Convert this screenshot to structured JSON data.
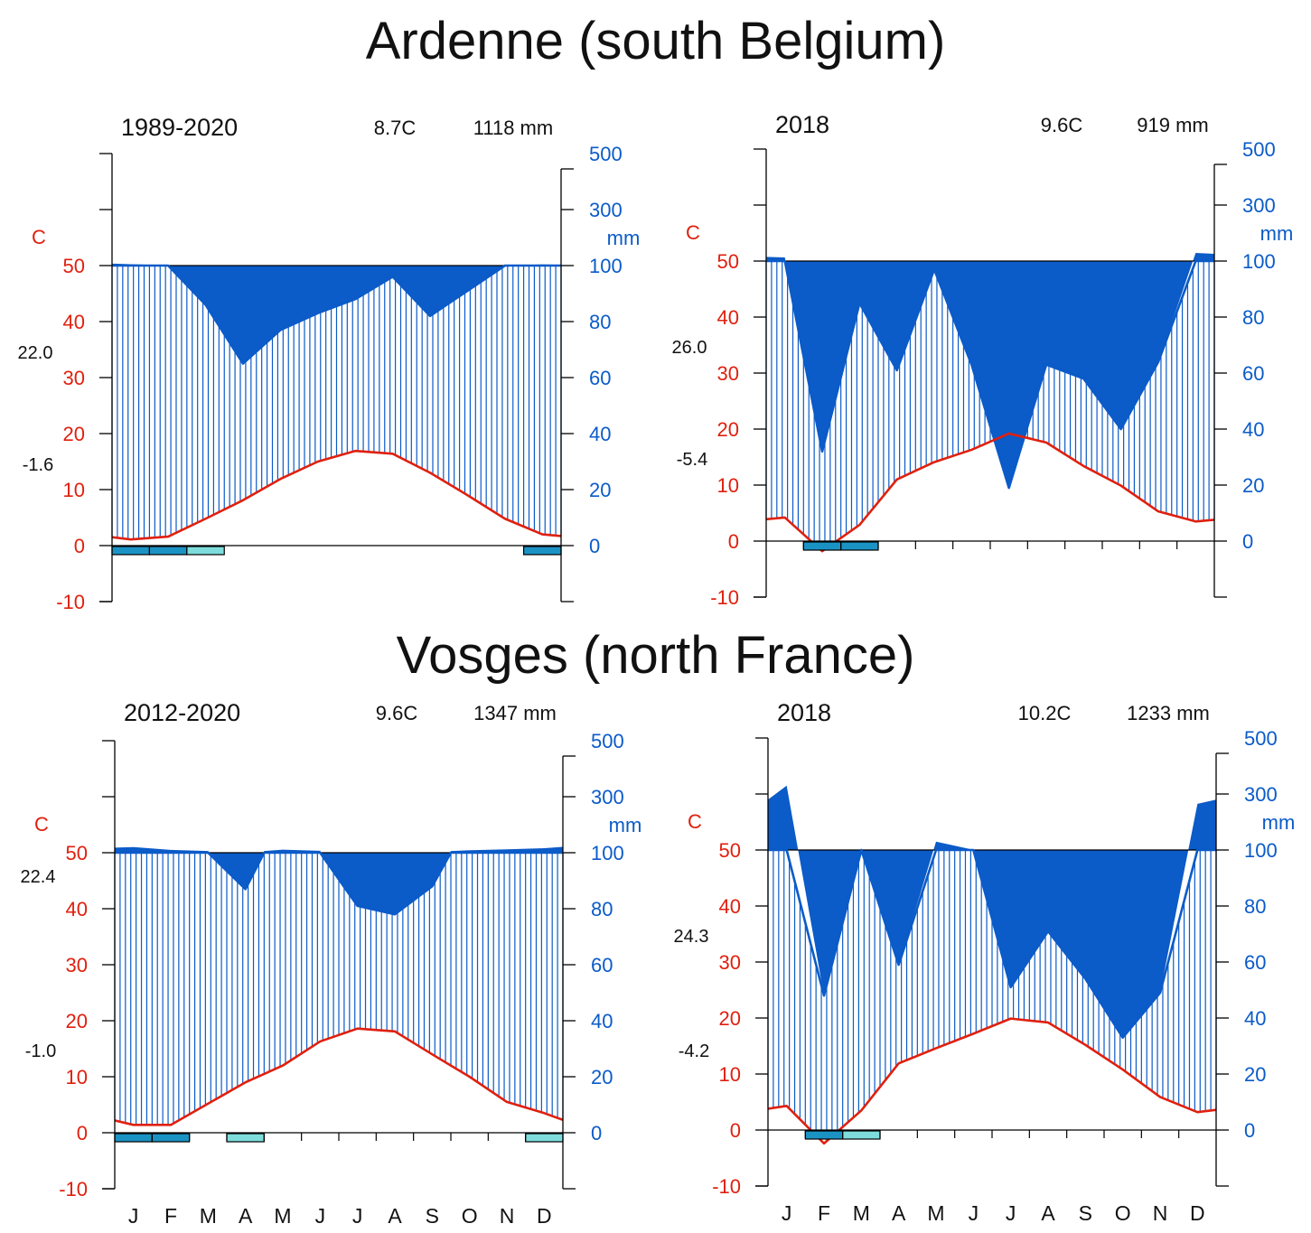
{
  "titles": {
    "top": "Ardenne (south Belgium)",
    "bottom": "Vosges (north France)"
  },
  "colors": {
    "temperature": "#e0200e",
    "precipitation": "#0b5bc8",
    "frost_certain": "#1a93c4",
    "frost_probable": "#7edcdc",
    "axis": "#000000"
  },
  "months": [
    "J",
    "F",
    "M",
    "A",
    "M",
    "J",
    "J",
    "A",
    "S",
    "O",
    "N",
    "D"
  ],
  "chart_data": [
    {
      "type": "climate-diagram",
      "period": "1989-2020",
      "mean_temp": "8.7C",
      "annual_precip": "1118 mm",
      "max_temp_label": "22.0",
      "min_temp_label": "-1.6",
      "temp_unit": "C",
      "precip_unit": "mm",
      "temp_ticks": [
        "-10",
        "0",
        "10",
        "20",
        "30",
        "40",
        "50"
      ],
      "precip_ticks": [
        "0",
        "20",
        "40",
        "60",
        "80",
        "100",
        "300",
        "500"
      ],
      "x": [
        0,
        0.5,
        1.5,
        2.5,
        3.5,
        4.5,
        5.5,
        6.5,
        7.5,
        8.5,
        9.5,
        10.5,
        11.5,
        12
      ],
      "temperature": [
        1.5,
        1.1,
        1.6,
        4.8,
        8.1,
        11.9,
        15.0,
        16.9,
        16.4,
        13.0,
        9.0,
        4.8,
        2.0,
        1.7
      ],
      "precipitation": [
        107,
        105,
        101,
        86,
        65,
        77,
        83,
        88,
        96,
        82,
        91,
        100,
        104,
        103
      ],
      "frost_bars": [
        {
          "month": 1,
          "kind": "certain"
        },
        {
          "month": 2,
          "kind": "certain"
        },
        {
          "month": 3,
          "kind": "probable"
        },
        {
          "month": 12,
          "kind": "certain"
        }
      ]
    },
    {
      "type": "climate-diagram",
      "period": "2018",
      "mean_temp": "9.6C",
      "annual_precip": "919 mm",
      "max_temp_label": "26.0",
      "min_temp_label": "-5.4",
      "temp_unit": "C",
      "precip_unit": "mm",
      "temp_ticks": [
        "-10",
        "0",
        "10",
        "20",
        "30",
        "40",
        "50"
      ],
      "precip_ticks": [
        "0",
        "20",
        "40",
        "60",
        "80",
        "100",
        "300",
        "500"
      ],
      "x": [
        0,
        0.5,
        1.5,
        2.5,
        3.5,
        4.5,
        5.5,
        6.5,
        7.5,
        8.5,
        9.5,
        10.5,
        11.5,
        12
      ],
      "temperature": [
        3.9,
        4.2,
        -1.8,
        2.9,
        11.0,
        14.1,
        16.3,
        19.2,
        17.6,
        13.4,
        9.9,
        5.3,
        3.5,
        3.8
      ],
      "precipitation": [
        115,
        113,
        32,
        85,
        61,
        97,
        63,
        19,
        63,
        58,
        40,
        64,
        129,
        126
      ],
      "frost_bars": [
        {
          "month": 2,
          "kind": "certain"
        },
        {
          "month": 3,
          "kind": "certain"
        }
      ]
    },
    {
      "type": "climate-diagram",
      "period": "2012-2020",
      "mean_temp": "9.6C",
      "annual_precip": "1347 mm",
      "max_temp_label": "22.4",
      "min_temp_label": "-1.0",
      "temp_unit": "C",
      "precip_unit": "mm",
      "temp_ticks": [
        "-10",
        "0",
        "10",
        "20",
        "30",
        "40",
        "50"
      ],
      "precip_ticks": [
        "0",
        "20",
        "40",
        "60",
        "80",
        "100",
        "300",
        "500"
      ],
      "x": [
        0,
        0.5,
        1.5,
        2.5,
        3.5,
        4.0,
        4.5,
        5.5,
        6.5,
        7.5,
        8.5,
        9.0,
        9.5,
        10.5,
        11.5,
        12
      ],
      "temperature": [
        2.2,
        1.4,
        1.4,
        5.2,
        9.0,
        10.5,
        12.0,
        16.3,
        18.6,
        18.1,
        14.0,
        12.0,
        10.0,
        5.5,
        3.5,
        2.3
      ],
      "precipitation": [
        118,
        120,
        110,
        106,
        87,
        106,
        111,
        107,
        81,
        78,
        88,
        106,
        109,
        112,
        116,
        121
      ],
      "frost_bars": [
        {
          "month": 1,
          "kind": "certain"
        },
        {
          "month": 2,
          "kind": "certain"
        },
        {
          "month": 4,
          "kind": "probable"
        },
        {
          "month": 12,
          "kind": "probable"
        }
      ]
    },
    {
      "type": "climate-diagram",
      "period": "2018",
      "mean_temp": "10.2C",
      "annual_precip": "1233 mm",
      "max_temp_label": "24.3",
      "min_temp_label": "-4.2",
      "temp_unit": "C",
      "precip_unit": "mm",
      "temp_ticks": [
        "-10",
        "0",
        "10",
        "20",
        "30",
        "40",
        "50"
      ],
      "precip_ticks": [
        "0",
        "20",
        "40",
        "60",
        "80",
        "100",
        "300",
        "500"
      ],
      "x": [
        0,
        0.5,
        1.5,
        2.5,
        3.5,
        4.5,
        5.5,
        6.5,
        7.5,
        8.5,
        9.5,
        10.5,
        11.5,
        12
      ],
      "temperature": [
        3.8,
        4.3,
        -2.4,
        3.5,
        11.9,
        14.6,
        17.2,
        19.9,
        19.2,
        15.2,
        10.8,
        5.9,
        3.2,
        3.6
      ],
      "precipitation": [
        280,
        330,
        48,
        104,
        59,
        130,
        101,
        51,
        71,
        54,
        33,
        49,
        265,
        280
      ],
      "frost_bars": [
        {
          "month": 2,
          "kind": "certain"
        },
        {
          "month": 3,
          "kind": "probable"
        }
      ]
    }
  ]
}
